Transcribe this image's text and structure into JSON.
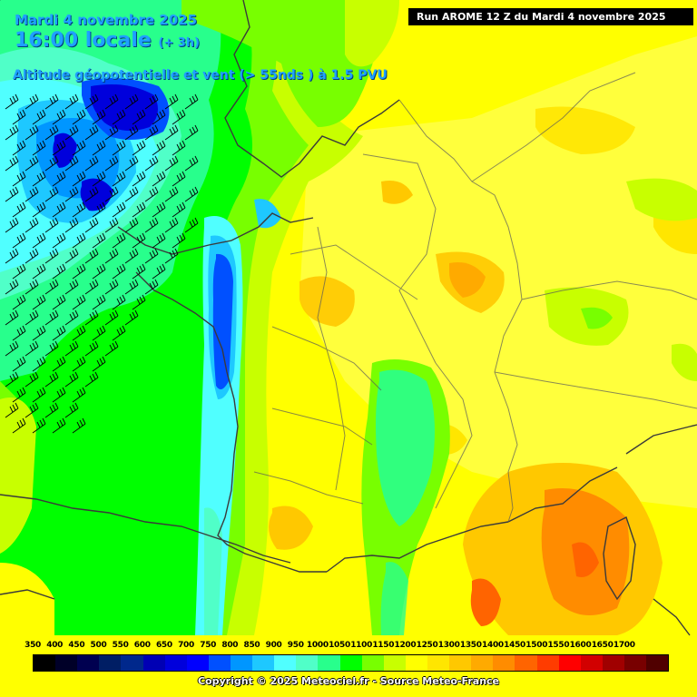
{
  "header": {
    "date": "Mardi 4 novembre 2025",
    "time": "16:00 locale",
    "step": "(+ 3h)",
    "parameter": "Altitude géopotentielle et vent (> 55nds ) à 1.5 PVU"
  },
  "run_label": "Run AROME 12 Z du Mardi 4 novembre 2025",
  "legend": {
    "labels": [
      "350",
      "400",
      "450",
      "500",
      "550",
      "600",
      "650",
      "700",
      "750",
      "800",
      "850",
      "900",
      "950",
      "1000",
      "1050",
      "1100",
      "1150",
      "1200",
      "1250",
      "1300",
      "1350",
      "1400",
      "1450",
      "1500",
      "1550",
      "1600",
      "1650",
      "1700"
    ],
    "colors": [
      "#000000",
      "#000028",
      "#000050",
      "#001e64",
      "#00288c",
      "#0000b4",
      "#0000dc",
      "#0000ff",
      "#0050ff",
      "#0096ff",
      "#1ec8ff",
      "#50ffff",
      "#50ffc8",
      "#28ff8c",
      "#00ff00",
      "#78ff00",
      "#c8ff00",
      "#ffff00",
      "#ffe600",
      "#ffc800",
      "#ffaa00",
      "#ff8c00",
      "#ff6400",
      "#ff3c00",
      "#ff0000",
      "#d20000",
      "#a00000",
      "#780000",
      "#500000"
    ]
  },
  "copyright": "Copyright © 2025 Meteociel.fr - Source Meteo-France"
}
